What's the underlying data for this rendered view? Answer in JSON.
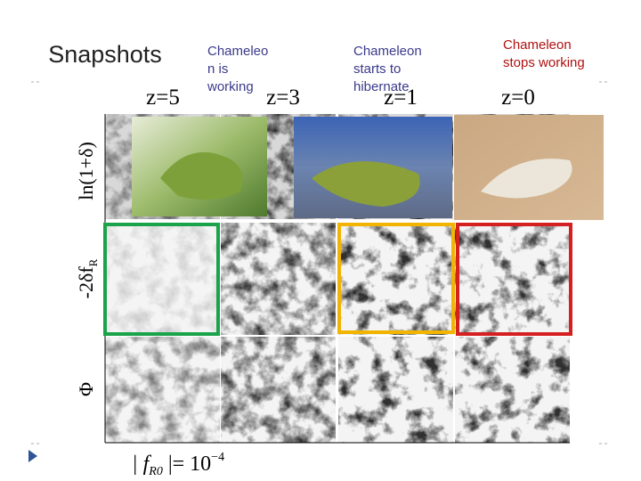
{
  "title": "Snapshots",
  "captions": [
    {
      "lines": [
        "Chameleo",
        "n is",
        "working"
      ],
      "color": "#3a3a8c"
    },
    {
      "lines": [
        "Chameleon",
        "starts to",
        "hibernate"
      ],
      "color": "#3a3a8c"
    },
    {
      "lines": [
        "Chameleon",
        "stops working"
      ],
      "color": "#b01010"
    }
  ],
  "redshifts": [
    "z=5",
    "z=3",
    "z=1",
    "z=0"
  ],
  "rows": [
    {
      "main": "ln(1+δ)"
    },
    {
      "main": "-2δf",
      "sub": "R"
    },
    {
      "main": "Φ"
    }
  ],
  "footer": {
    "base": "| f",
    "sub": "R0",
    "mid": " |= 10",
    "sup": "−4"
  }
}
